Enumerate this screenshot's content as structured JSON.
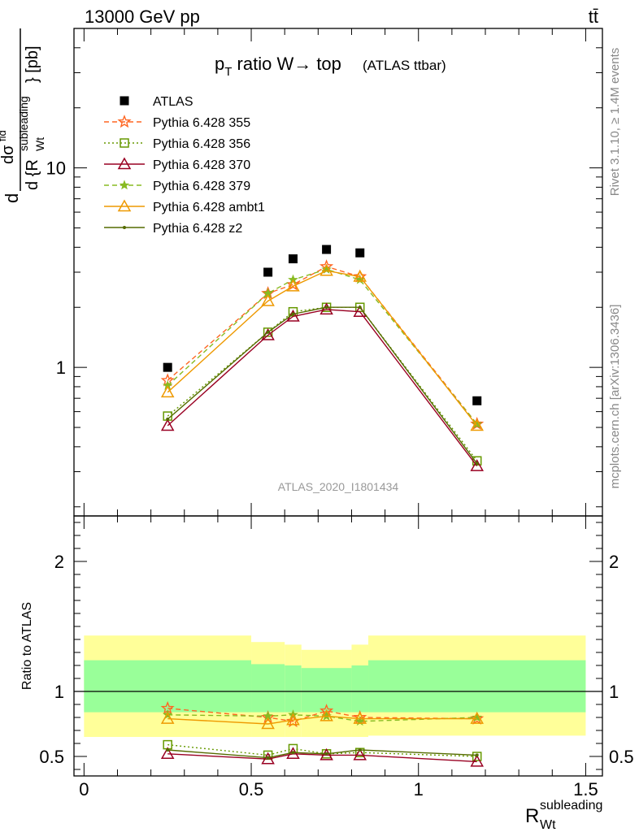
{
  "header": {
    "energy_label": "13000 GeV pp",
    "process_label": "tt̄"
  },
  "side_labels": {
    "rivet": "Rivet 3.1.10, ≥ 1.4M events",
    "mcplots": "mcplots.cern.ch [arXiv:1306.3436]"
  },
  "chart_data": [
    {
      "type": "line",
      "title": "p_T ratio W→ top (ATLAS ttbar)",
      "title_parts": {
        "p": "p",
        "sub": "T",
        "main": " ratio W→ top",
        "small": "(ATLAS ttbar)"
      },
      "ylabel_parts": {
        "d1": "d",
        "dsigma": "dσ",
        "sup_fid": "fid",
        "denom": "d {R",
        "denom_sub": "Wt",
        "denom_sup": "subleading",
        "close": "} [pb]"
      },
      "analysis_label": "ATLAS_2020_I1801434",
      "yscale": "log",
      "ylim": [
        0.18,
        50
      ],
      "xlim": [
        -0.03,
        1.55
      ],
      "y_tick_labels": [
        "1",
        "10"
      ],
      "series": [
        {
          "name": "ATLAS",
          "color": "#000000",
          "marker": "square",
          "style": "none",
          "x": [
            0.25,
            0.55,
            0.625,
            0.725,
            0.825,
            1.175
          ],
          "y": [
            1.0,
            3.0,
            3.5,
            3.9,
            3.75,
            0.68
          ]
        },
        {
          "name": "Pythia 6.428 355",
          "color": "#ff6622",
          "marker": "star-open",
          "style": "dashed",
          "x": [
            0.25,
            0.55,
            0.625,
            0.725,
            0.825,
            1.175
          ],
          "y": [
            0.86,
            2.35,
            2.6,
            3.2,
            2.85,
            0.52
          ]
        },
        {
          "name": "Pythia 6.428 356",
          "color": "#669900",
          "marker": "square-open",
          "style": "dotted",
          "x": [
            0.25,
            0.55,
            0.625,
            0.725,
            0.825,
            1.175
          ],
          "y": [
            0.57,
            1.5,
            1.9,
            2.0,
            2.0,
            0.34
          ]
        },
        {
          "name": "Pythia 6.428 370",
          "color": "#990022",
          "marker": "triangle-open",
          "style": "solid",
          "x": [
            0.25,
            0.55,
            0.625,
            0.725,
            0.825,
            1.175
          ],
          "y": [
            0.51,
            1.45,
            1.8,
            1.95,
            1.9,
            0.32
          ]
        },
        {
          "name": "Pythia 6.428 379",
          "color": "#88bb22",
          "marker": "star",
          "style": "dashed",
          "x": [
            0.25,
            0.55,
            0.625,
            0.725,
            0.825,
            1.175
          ],
          "y": [
            0.81,
            2.35,
            2.75,
            3.1,
            2.75,
            0.52
          ]
        },
        {
          "name": "Pythia 6.428 ambt1",
          "color": "#ee9900",
          "marker": "triangle-open",
          "style": "solid",
          "x": [
            0.25,
            0.55,
            0.625,
            0.725,
            0.825,
            1.175
          ],
          "y": [
            0.75,
            2.15,
            2.55,
            3.05,
            2.85,
            0.51
          ]
        },
        {
          "name": "Pythia 6.428 z2",
          "color": "#556b00",
          "marker": "dot",
          "style": "solid",
          "x": [
            0.25,
            0.55,
            0.625,
            0.725,
            0.825,
            1.175
          ],
          "y": [
            0.55,
            1.5,
            1.85,
            2.0,
            2.0,
            0.33
          ]
        }
      ]
    },
    {
      "type": "line",
      "ylabel": "Ratio to ATLAS",
      "xlabel_parts": {
        "main": "R",
        "sub": "Wt",
        "sup": "subleading"
      },
      "ylim": [
        0.35,
        2.35
      ],
      "xlim": [
        -0.03,
        1.55
      ],
      "x_tick_labels": [
        "0",
        "0.5",
        "1",
        "1.5"
      ],
      "x_tick_values": [
        0,
        0.5,
        1,
        1.5
      ],
      "y_tick_labels": [
        "0.5",
        "1",
        "2"
      ],
      "y_tick_values": [
        0.5,
        1,
        2
      ],
      "bins": [
        {
          "x": [
            0.0,
            0.5
          ],
          "inner": [
            0.84,
            1.24
          ],
          "outer": [
            0.65,
            1.43
          ]
        },
        {
          "x": [
            0.5,
            0.6
          ],
          "inner": [
            0.84,
            1.21
          ],
          "outer": [
            0.65,
            1.38
          ]
        },
        {
          "x": [
            0.6,
            0.65
          ],
          "inner": [
            0.84,
            1.2
          ],
          "outer": [
            0.65,
            1.36
          ]
        },
        {
          "x": [
            0.65,
            0.8
          ],
          "inner": [
            0.84,
            1.18
          ],
          "outer": [
            0.65,
            1.32
          ]
        },
        {
          "x": [
            0.8,
            0.85
          ],
          "inner": [
            0.84,
            1.2
          ],
          "outer": [
            0.65,
            1.36
          ]
        },
        {
          "x": [
            0.85,
            1.5
          ],
          "inner": [
            0.84,
            1.24
          ],
          "outer": [
            0.66,
            1.43
          ]
        }
      ],
      "series": [
        {
          "name": "Pythia 6.428 355",
          "color": "#ff6622",
          "marker": "star-open",
          "style": "dashed",
          "x": [
            0.25,
            0.55,
            0.625,
            0.725,
            0.825,
            1.175
          ],
          "y": [
            0.87,
            0.8,
            0.77,
            0.85,
            0.8,
            0.79
          ]
        },
        {
          "name": "Pythia 6.428 356",
          "color": "#669900",
          "marker": "square-open",
          "style": "dotted",
          "x": [
            0.25,
            0.55,
            0.625,
            0.725,
            0.825,
            1.175
          ],
          "y": [
            0.59,
            0.51,
            0.56,
            0.52,
            0.53,
            0.5
          ]
        },
        {
          "name": "Pythia 6.428 370",
          "color": "#990022",
          "marker": "triangle-open",
          "style": "solid",
          "x": [
            0.25,
            0.55,
            0.625,
            0.725,
            0.825,
            1.175
          ],
          "y": [
            0.52,
            0.48,
            0.52,
            0.51,
            0.51,
            0.46
          ]
        },
        {
          "name": "Pythia 6.428 379",
          "color": "#88bb22",
          "marker": "star",
          "style": "dashed",
          "x": [
            0.25,
            0.55,
            0.625,
            0.725,
            0.825,
            1.175
          ],
          "y": [
            0.82,
            0.81,
            0.82,
            0.81,
            0.77,
            0.8
          ]
        },
        {
          "name": "Pythia 6.428 ambt1",
          "color": "#ee9900",
          "marker": "triangle-open",
          "style": "solid",
          "x": [
            0.25,
            0.55,
            0.625,
            0.725,
            0.825,
            1.175
          ],
          "y": [
            0.79,
            0.75,
            0.78,
            0.81,
            0.79,
            0.79
          ]
        },
        {
          "name": "Pythia 6.428 z2",
          "color": "#556b00",
          "marker": "dot",
          "style": "solid",
          "x": [
            0.25,
            0.55,
            0.625,
            0.725,
            0.825,
            1.175
          ],
          "y": [
            0.55,
            0.49,
            0.53,
            0.52,
            0.55,
            0.51
          ]
        }
      ]
    }
  ]
}
